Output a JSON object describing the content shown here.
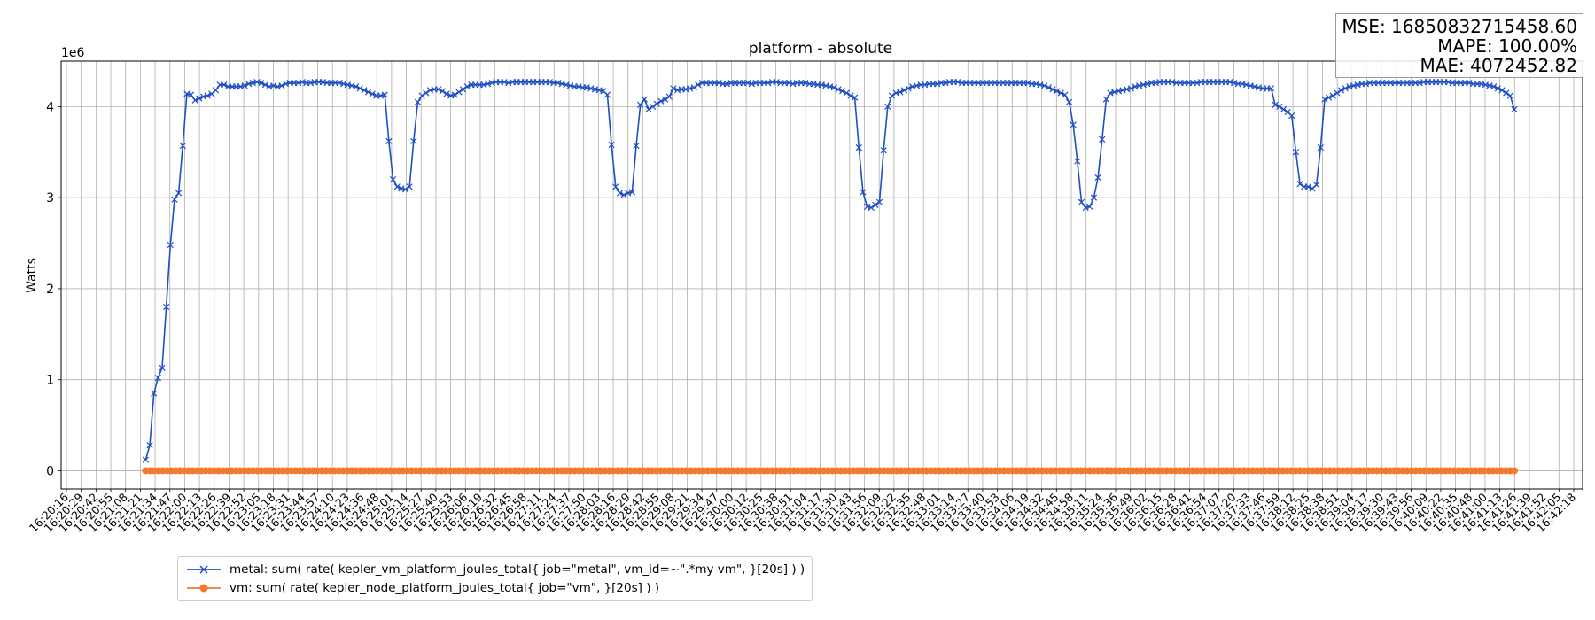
{
  "chart_data": {
    "type": "line",
    "title": "platform - absolute",
    "ylabel": "Watts",
    "xlabel": "",
    "y_multiplier_label": "1e6",
    "ylim": [
      -0.2,
      4.5
    ],
    "yticks": [
      0,
      1,
      2,
      3,
      4
    ],
    "grid": true,
    "legend_position": "bottom-left",
    "x_ticks": [
      "16:20:16",
      "16:20:29",
      "16:20:42",
      "16:20:55",
      "16:21:08",
      "16:21:21",
      "16:21:34",
      "16:21:47",
      "16:22:00",
      "16:22:13",
      "16:22:26",
      "16:22:39",
      "16:22:52",
      "16:23:05",
      "16:23:18",
      "16:23:31",
      "16:23:44",
      "16:23:57",
      "16:24:10",
      "16:24:23",
      "16:24:36",
      "16:24:48",
      "16:25:01",
      "16:25:14",
      "16:25:27",
      "16:25:40",
      "16:25:53",
      "16:26:06",
      "16:26:19",
      "16:26:32",
      "16:26:45",
      "16:26:58",
      "16:27:11",
      "16:27:24",
      "16:27:37",
      "16:27:50",
      "16:28:03",
      "16:28:16",
      "16:28:29",
      "16:28:42",
      "16:28:55",
      "16:29:08",
      "16:29:21",
      "16:29:34",
      "16:29:47",
      "16:30:00",
      "16:30:12",
      "16:30:25",
      "16:30:38",
      "16:30:51",
      "16:31:04",
      "16:31:17",
      "16:31:30",
      "16:31:43",
      "16:31:56",
      "16:32:09",
      "16:32:22",
      "16:32:35",
      "16:32:48",
      "16:33:01",
      "16:33:14",
      "16:33:27",
      "16:33:40",
      "16:33:53",
      "16:34:06",
      "16:34:19",
      "16:34:32",
      "16:34:45",
      "16:34:58",
      "16:35:11",
      "16:35:24",
      "16:35:36",
      "16:35:49",
      "16:36:02",
      "16:36:15",
      "16:36:28",
      "16:36:41",
      "16:36:54",
      "16:37:07",
      "16:37:20",
      "16:37:33",
      "16:37:46",
      "16:37:59",
      "16:38:12",
      "16:38:25",
      "16:38:38",
      "16:38:51",
      "16:39:04",
      "16:39:17",
      "16:39:30",
      "16:39:43",
      "16:39:56",
      "16:40:09",
      "16:40:22",
      "16:40:35",
      "16:40:48",
      "16:41:00",
      "16:41:13",
      "16:41:26",
      "16:41:39",
      "16:41:52",
      "16:42:05",
      "16:42:18"
    ],
    "series": [
      {
        "name": "metal: sum( rate( kepler_vm_platform_joules_total{ job=\"metal\", vm_id=~\".*my-vm\", }[20s] ) )",
        "color": "#1f4fc4",
        "marker": "x",
        "start_index": 5,
        "values": [
          0.12,
          0.28,
          0.85,
          1.02,
          1.13,
          1.8,
          2.48,
          2.98,
          3.05,
          3.57,
          4.14,
          4.13,
          4.07,
          4.09,
          4.11,
          4.12,
          4.14,
          4.18,
          4.24,
          4.24,
          4.22,
          4.22,
          4.22,
          4.22,
          4.23,
          4.25,
          4.26,
          4.27,
          4.26,
          4.24,
          4.22,
          4.23,
          4.22,
          4.23,
          4.25,
          4.26,
          4.26,
          4.26,
          4.27,
          4.26,
          4.26,
          4.27,
          4.27,
          4.27,
          4.26,
          4.26,
          4.26,
          4.26,
          4.25,
          4.24,
          4.23,
          4.22,
          4.2,
          4.18,
          4.16,
          4.14,
          4.12,
          4.12,
          4.13,
          3.62,
          3.2,
          3.12,
          3.1,
          3.09,
          3.12,
          3.62,
          4.05,
          4.12,
          4.15,
          4.18,
          4.19,
          4.19,
          4.17,
          4.14,
          4.12,
          4.13,
          4.16,
          4.19,
          4.22,
          4.24,
          4.24,
          4.24,
          4.24,
          4.25,
          4.26,
          4.27,
          4.27,
          4.27,
          4.26,
          4.27,
          4.27,
          4.27,
          4.27,
          4.27,
          4.27,
          4.27,
          4.27,
          4.27,
          4.27,
          4.26,
          4.26,
          4.25,
          4.24,
          4.23,
          4.22,
          4.22,
          4.21,
          4.21,
          4.2,
          4.19,
          4.18,
          4.17,
          4.13,
          3.58,
          3.12,
          3.05,
          3.03,
          3.05,
          3.06,
          3.57,
          4.02,
          4.08,
          3.97,
          4.0,
          4.03,
          4.06,
          4.08,
          4.11,
          4.2,
          4.18,
          4.19,
          4.19,
          4.2,
          4.21,
          4.24,
          4.26,
          4.26,
          4.26,
          4.26,
          4.26,
          4.25,
          4.25,
          4.26,
          4.26,
          4.26,
          4.26,
          4.26,
          4.25,
          4.26,
          4.26,
          4.26,
          4.26,
          4.27,
          4.27,
          4.26,
          4.26,
          4.26,
          4.25,
          4.26,
          4.26,
          4.26,
          4.25,
          4.25,
          4.24,
          4.24,
          4.23,
          4.22,
          4.21,
          4.19,
          4.17,
          4.15,
          4.12,
          4.1,
          3.55,
          3.06,
          2.9,
          2.89,
          2.92,
          2.95,
          3.52,
          4.0,
          4.12,
          4.15,
          4.16,
          4.18,
          4.2,
          4.22,
          4.23,
          4.24,
          4.24,
          4.25,
          4.25,
          4.25,
          4.26,
          4.26,
          4.27,
          4.27,
          4.27,
          4.26,
          4.26,
          4.26,
          4.26,
          4.26,
          4.26,
          4.26,
          4.26,
          4.26,
          4.26,
          4.26,
          4.26,
          4.26,
          4.26,
          4.26,
          4.26,
          4.26,
          4.25,
          4.25,
          4.24,
          4.23,
          4.21,
          4.19,
          4.17,
          4.15,
          4.13,
          4.05,
          3.8,
          3.4,
          2.95,
          2.89,
          2.9,
          3.0,
          3.22,
          3.64,
          4.08,
          4.15,
          4.16,
          4.17,
          4.18,
          4.19,
          4.2,
          4.22,
          4.23,
          4.24,
          4.25,
          4.26,
          4.26,
          4.27,
          4.27,
          4.27,
          4.27,
          4.26,
          4.26,
          4.26,
          4.26,
          4.26,
          4.26,
          4.27,
          4.27,
          4.27,
          4.27,
          4.27,
          4.27,
          4.27,
          4.27,
          4.26,
          4.25,
          4.25,
          4.24,
          4.23,
          4.22,
          4.21,
          4.2,
          4.2,
          4.2,
          4.02,
          4.0,
          3.97,
          3.94,
          3.9,
          3.5,
          3.15,
          3.12,
          3.12,
          3.1,
          3.14,
          3.55,
          4.08,
          4.1,
          4.12,
          4.15,
          4.18,
          4.2,
          4.22,
          4.23,
          4.24,
          4.25,
          4.25,
          4.26,
          4.26,
          4.26,
          4.26,
          4.26,
          4.26,
          4.26,
          4.26,
          4.26,
          4.26,
          4.26,
          4.26,
          4.26,
          4.27,
          4.27,
          4.27,
          4.27,
          4.27,
          4.27,
          4.27,
          4.26,
          4.26,
          4.26,
          4.26,
          4.26,
          4.25,
          4.25,
          4.25,
          4.24,
          4.23,
          4.22,
          4.2,
          4.18,
          4.15,
          4.12,
          3.97
        ]
      },
      {
        "name": "vm: sum( rate( kepler_node_platform_joules_total{ job=\"vm\", }[20s] ) )",
        "color": "#f07a2e",
        "marker": "o",
        "start_index": 5,
        "constant_value": 0,
        "point_count": 320
      }
    ],
    "annotation": {
      "lines": [
        "MSE: 16850832715458.60",
        "MAPE: 100.00%",
        "MAE: 4072452.82"
      ],
      "position": "top-right"
    }
  }
}
